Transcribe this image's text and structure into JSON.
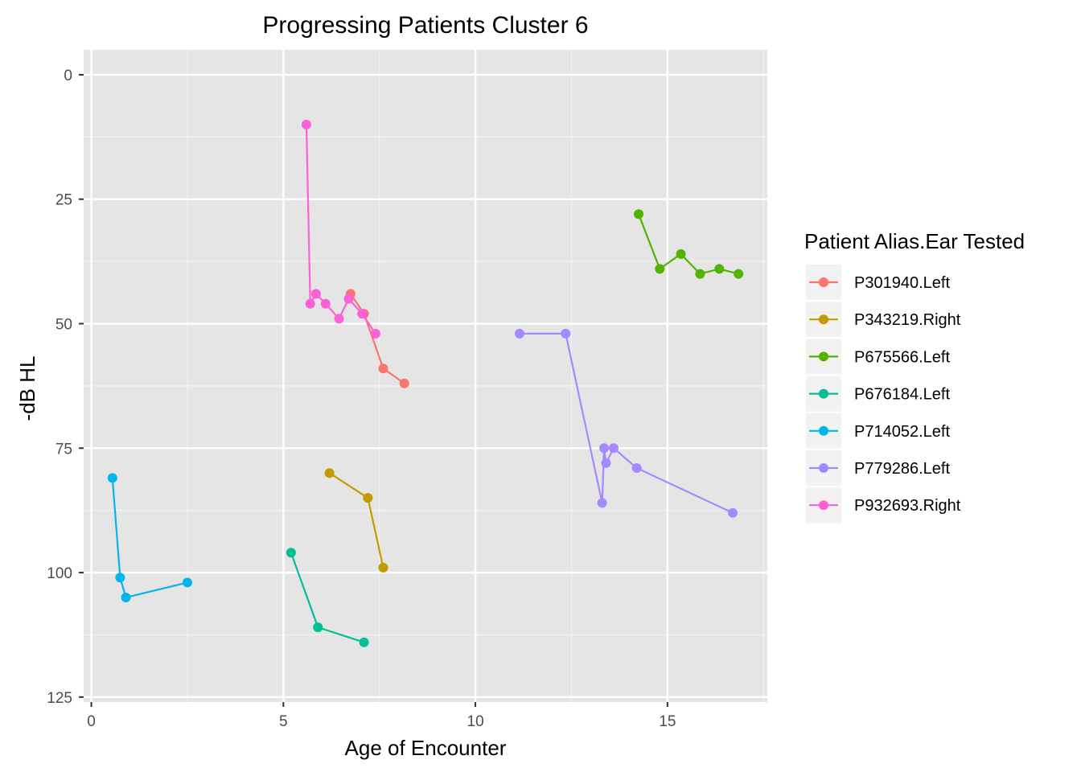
{
  "chart_data": {
    "type": "line",
    "title": "Progressing Patients Cluster 6",
    "xlabel": "Age of Encounter",
    "ylabel": "-dB HL",
    "xlim": [
      -0.2,
      17.6
    ],
    "ylim": [
      -5,
      126
    ],
    "y_reversed": true,
    "x_ticks": [
      0,
      5,
      10,
      15
    ],
    "y_ticks": [
      0,
      25,
      50,
      75,
      100,
      125
    ],
    "grid": true,
    "legend": {
      "title": "Patient Alias.Ear Tested",
      "position": "right"
    },
    "series": [
      {
        "name": "P301940.Left",
        "color": "#F8766D",
        "points": [
          [
            6.75,
            44
          ],
          [
            7.1,
            48
          ],
          [
            7.6,
            59
          ],
          [
            8.15,
            62
          ]
        ]
      },
      {
        "name": "P343219.Right",
        "color": "#C49A00",
        "points": [
          [
            6.2,
            80
          ],
          [
            7.2,
            85
          ],
          [
            7.6,
            99
          ]
        ]
      },
      {
        "name": "P675566.Left",
        "color": "#53B400",
        "points": [
          [
            14.25,
            28
          ],
          [
            14.8,
            39
          ],
          [
            15.35,
            36
          ],
          [
            15.85,
            40
          ],
          [
            16.35,
            39
          ],
          [
            16.85,
            40
          ]
        ]
      },
      {
        "name": "P676184.Left",
        "color": "#00C094",
        "points": [
          [
            5.2,
            96
          ],
          [
            5.9,
            111
          ],
          [
            7.1,
            114
          ]
        ]
      },
      {
        "name": "P714052.Left",
        "color": "#00B6EB",
        "points": [
          [
            0.55,
            81
          ],
          [
            0.75,
            101
          ],
          [
            0.9,
            105
          ],
          [
            2.5,
            102
          ]
        ]
      },
      {
        "name": "P779286.Left",
        "color": "#A58AFF",
        "points": [
          [
            11.15,
            52
          ],
          [
            12.35,
            52
          ],
          [
            13.3,
            86
          ],
          [
            13.35,
            75
          ],
          [
            13.4,
            78
          ],
          [
            13.6,
            75
          ],
          [
            14.2,
            79
          ],
          [
            16.7,
            88
          ]
        ]
      },
      {
        "name": "P932693.Right",
        "color": "#FB61D7",
        "points": [
          [
            5.6,
            10
          ],
          [
            5.7,
            46
          ],
          [
            5.85,
            44
          ],
          [
            6.1,
            46
          ],
          [
            6.45,
            49
          ],
          [
            6.7,
            45
          ],
          [
            7.05,
            48
          ],
          [
            7.4,
            52
          ]
        ]
      }
    ]
  }
}
